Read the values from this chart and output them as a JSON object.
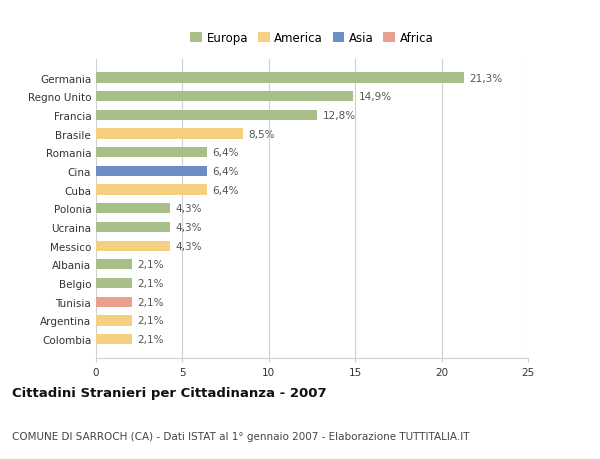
{
  "title": "Cittadini Stranieri per Cittadinanza - 2007",
  "subtitle": "COMUNE DI SARROCH (CA) - Dati ISTAT al 1° gennaio 2007 - Elaborazione TUTTITALIA.IT",
  "categories": [
    "Germania",
    "Regno Unito",
    "Francia",
    "Brasile",
    "Romania",
    "Cina",
    "Cuba",
    "Polonia",
    "Ucraina",
    "Messico",
    "Albania",
    "Belgio",
    "Tunisia",
    "Argentina",
    "Colombia"
  ],
  "values": [
    21.3,
    14.9,
    12.8,
    8.5,
    6.4,
    6.4,
    6.4,
    4.3,
    4.3,
    4.3,
    2.1,
    2.1,
    2.1,
    2.1,
    2.1
  ],
  "labels": [
    "21,3%",
    "14,9%",
    "12,8%",
    "8,5%",
    "6,4%",
    "6,4%",
    "6,4%",
    "4,3%",
    "4,3%",
    "4,3%",
    "2,1%",
    "2,1%",
    "2,1%",
    "2,1%",
    "2,1%"
  ],
  "colors": [
    "#a8bf8a",
    "#a8bf8a",
    "#a8bf8a",
    "#f5d080",
    "#a8bf8a",
    "#6b8fc4",
    "#f5d080",
    "#a8bf8a",
    "#a8bf8a",
    "#f5d080",
    "#a8bf8a",
    "#a8bf8a",
    "#e8a090",
    "#f5d080",
    "#f5d080"
  ],
  "legend": [
    {
      "label": "Europa",
      "color": "#a8bf8a"
    },
    {
      "label": "America",
      "color": "#f5d080"
    },
    {
      "label": "Asia",
      "color": "#6b8fc4"
    },
    {
      "label": "Africa",
      "color": "#e8a090"
    }
  ],
  "xlim": [
    0,
    25
  ],
  "xticks": [
    0,
    5,
    10,
    15,
    20,
    25
  ],
  "background_color": "#ffffff",
  "grid_color": "#d0d0d0",
  "bar_height": 0.55,
  "title_fontsize": 9.5,
  "subtitle_fontsize": 7.5,
  "label_fontsize": 7.5,
  "tick_fontsize": 7.5,
  "legend_fontsize": 8.5
}
